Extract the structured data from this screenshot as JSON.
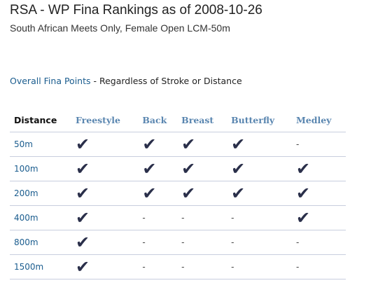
{
  "header": {
    "title": "RSA - WP Fina Rankings as of 2008-10-26",
    "subtitle": "South African Meets Only, Female Open LCM-50m"
  },
  "overall": {
    "link_label": "Overall Fina Points",
    "rest_text": " - Regardless of Stroke or Distance"
  },
  "table": {
    "headers": [
      "Distance",
      "Freestyle",
      "Back",
      "Breast",
      "Butterfly",
      "Medley"
    ],
    "check_glyph": "✔",
    "dash_glyph": "-",
    "rows": [
      {
        "distance": "50m",
        "cells": [
          true,
          true,
          true,
          true,
          false
        ]
      },
      {
        "distance": "100m",
        "cells": [
          true,
          true,
          true,
          true,
          true
        ]
      },
      {
        "distance": "200m",
        "cells": [
          true,
          true,
          true,
          true,
          true
        ]
      },
      {
        "distance": "400m",
        "cells": [
          true,
          false,
          false,
          false,
          true
        ]
      },
      {
        "distance": "800m",
        "cells": [
          true,
          false,
          false,
          false,
          false
        ]
      },
      {
        "distance": "1500m",
        "cells": [
          true,
          false,
          false,
          false,
          false
        ]
      }
    ]
  }
}
